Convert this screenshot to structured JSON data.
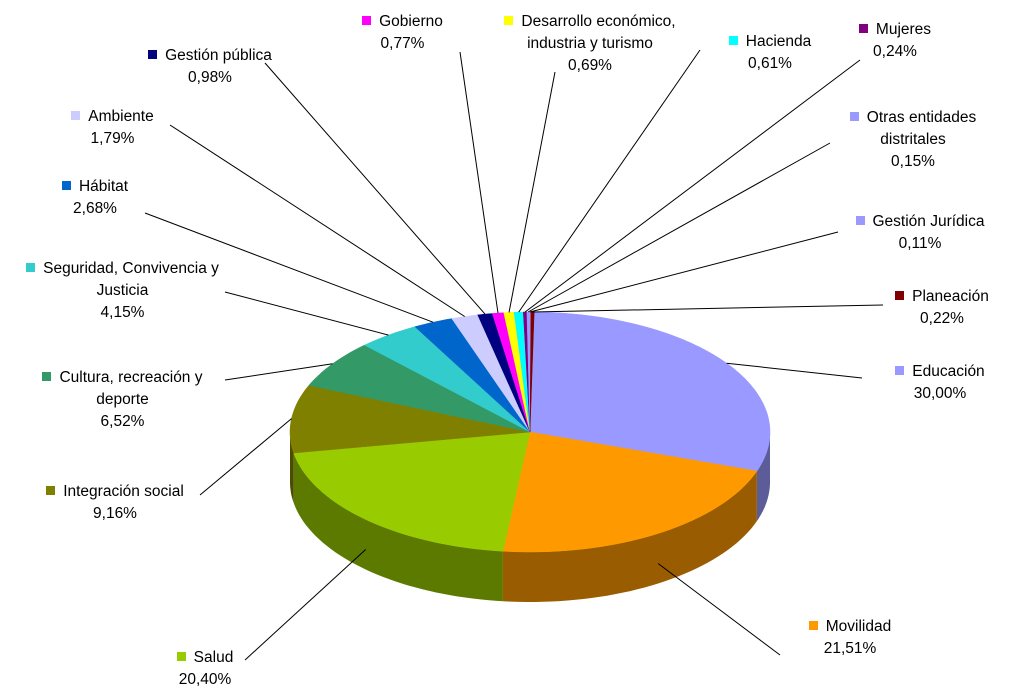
{
  "chart_data": {
    "type": "pie",
    "categories": [
      "Educación",
      "Movilidad",
      "Salud",
      "Integración social",
      "Cultura, recreación y deporte",
      "Seguridad, Convivencia y Justicia",
      "Hábitat",
      "Ambiente",
      "Gestión pública",
      "Gobierno",
      "Desarrollo económico, industria y turismo",
      "Hacienda",
      "Mujeres",
      "Otras entidades distritales",
      "Gestión Jurídica",
      "Planeación"
    ],
    "values": [
      30.0,
      21.51,
      20.4,
      9.16,
      6.52,
      4.15,
      2.68,
      1.79,
      0.98,
      0.77,
      0.69,
      0.61,
      0.24,
      0.15,
      0.11,
      0.22
    ],
    "value_labels": [
      "30,00%",
      "21,51%",
      "20,40%",
      "9,16%",
      "6,52%",
      "4,15%",
      "2,68%",
      "1,79%",
      "0,98%",
      "0,77%",
      "0,69%",
      "0,61%",
      "0,24%",
      "0,15%",
      "0,11%",
      "0,22%"
    ],
    "colors": [
      "#9999ff",
      "#ff9900",
      "#99cc00",
      "#808000",
      "#339966",
      "#33cccc",
      "#0066cc",
      "#ccccff",
      "#000080",
      "#ff00ff",
      "#ffff00",
      "#00ffff",
      "#800080",
      "#9999ff",
      "#9999ff",
      "#800000"
    ]
  }
}
